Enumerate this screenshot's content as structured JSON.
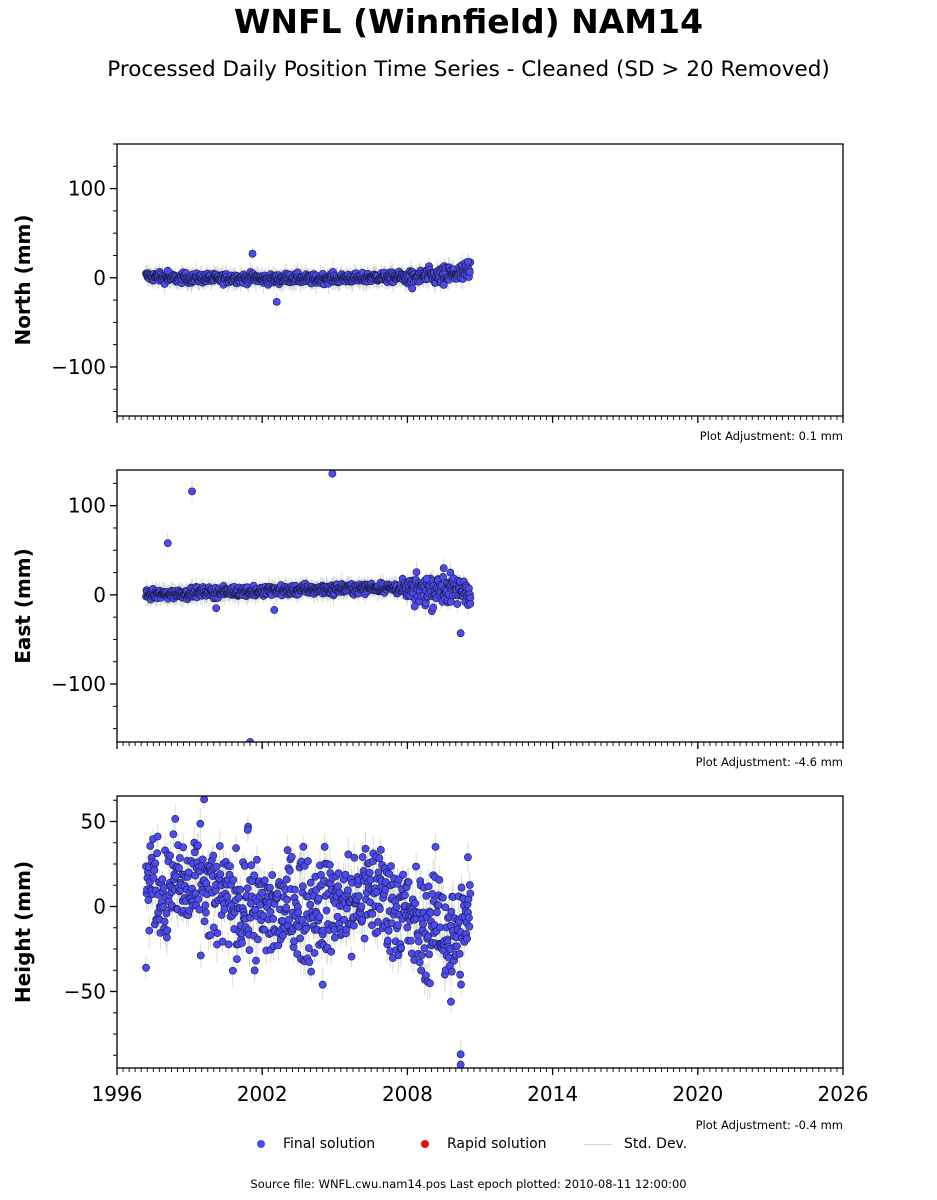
{
  "title": "WNFL (Winnfield) NAM14",
  "subtitle": "Processed Daily Position Time Series - Cleaned (SD > 20 Removed)",
  "chart_data": [
    {
      "type": "scatter",
      "ylabel": "North (mm)",
      "ylim": [
        -155,
        150
      ],
      "yticks": [
        100,
        0,
        -100
      ],
      "ytick_labels": [
        "100",
        "0",
        "−100"
      ],
      "xlim": [
        1996,
        2026
      ],
      "adjustment_label": "Plot Adjustment: 0.1 mm",
      "series": [
        {
          "name": "Final solution",
          "description_of_shape": "dense band of daily points",
          "x": [
            1997.2,
            1997.6,
            1998.0,
            1998.4,
            1998.8,
            1999.2,
            1999.6,
            2000.0,
            2000.4,
            2000.8,
            2001.2,
            2001.6,
            2002.0,
            2002.4,
            2002.8,
            2003.2,
            2003.6,
            2004.0,
            2004.4,
            2004.8,
            2005.2,
            2005.6,
            2006.0,
            2006.4,
            2006.8,
            2007.2,
            2007.6,
            2008.0,
            2008.4,
            2008.8,
            2009.2,
            2009.6,
            2010.0,
            2010.4,
            2010.6
          ],
          "y": [
            2,
            1,
            0,
            -1,
            0,
            -1,
            0,
            -1,
            -1,
            0,
            -1,
            0,
            -1,
            -2,
            -1,
            0,
            -1,
            -2,
            -1,
            0,
            -1,
            0,
            -1,
            0,
            1,
            0,
            1,
            0,
            0,
            2,
            1,
            3,
            4,
            5,
            6
          ],
          "spread": [
            3,
            3,
            3,
            3,
            3,
            3,
            3,
            3,
            3,
            3,
            3,
            3,
            3,
            3,
            3,
            3,
            3,
            3,
            3,
            3,
            3,
            3,
            3,
            3,
            3,
            3,
            3,
            4,
            4,
            5,
            5,
            6,
            6,
            7,
            8
          ],
          "outliers": [
            [
              2001.6,
              27
            ],
            [
              2002.6,
              -27
            ],
            [
              1998.1,
              8
            ],
            [
              2008.2,
              -12
            ],
            [
              2010.5,
              18
            ],
            [
              2009.5,
              -8
            ]
          ]
        }
      ]
    },
    {
      "type": "scatter",
      "ylabel": "East (mm)",
      "ylim": [
        -165,
        140
      ],
      "yticks": [
        100,
        0,
        -100
      ],
      "ytick_labels": [
        "100",
        "0",
        "−100"
      ],
      "xlim": [
        1996,
        2026
      ],
      "adjustment_label": "Plot Adjustment: -4.6 mm",
      "series": [
        {
          "name": "Final solution",
          "x": [
            1997.2,
            1997.6,
            1998.0,
            1998.4,
            1998.8,
            1999.2,
            1999.6,
            2000.0,
            2000.4,
            2000.8,
            2001.2,
            2001.6,
            2002.0,
            2002.4,
            2002.8,
            2003.2,
            2003.6,
            2004.0,
            2004.4,
            2004.8,
            2005.2,
            2005.6,
            2006.0,
            2006.4,
            2006.8,
            2007.2,
            2007.6,
            2008.0,
            2008.4,
            2008.8,
            2009.2,
            2009.6,
            2010.0,
            2010.4,
            2010.6
          ],
          "y": [
            0,
            0,
            1,
            1,
            2,
            2,
            3,
            3,
            3,
            4,
            4,
            4,
            4,
            5,
            5,
            5,
            6,
            6,
            6,
            6,
            7,
            7,
            7,
            8,
            8,
            8,
            8,
            6,
            7,
            6,
            7,
            6,
            5,
            5,
            5
          ],
          "spread": [
            3,
            3,
            3,
            3,
            3,
            3,
            3,
            3,
            3,
            3,
            3,
            3,
            3,
            3,
            3,
            3,
            3,
            3,
            3,
            3,
            3,
            3,
            3,
            3,
            3,
            3,
            4,
            5,
            8,
            10,
            10,
            10,
            9,
            8,
            8
          ],
          "outliers": [
            [
              1998.1,
              58
            ],
            [
              1999.1,
              116
            ],
            [
              2004.9,
              136
            ],
            [
              2001.5,
              -165
            ],
            [
              2002.5,
              -17
            ],
            [
              2000.1,
              -15
            ],
            [
              2010.2,
              -43
            ],
            [
              2009.5,
              30
            ],
            [
              2008.3,
              -13
            ],
            [
              2010.6,
              -10
            ],
            [
              2008.8,
              18
            ]
          ]
        }
      ]
    },
    {
      "type": "scatter",
      "ylabel": "Height (mm)",
      "ylim": [
        -95,
        65
      ],
      "yticks": [
        50,
        0,
        -50
      ],
      "ytick_labels": [
        "50",
        "0",
        "−50"
      ],
      "xlim": [
        1996,
        2026
      ],
      "xticks": [
        1996,
        2002,
        2008,
        2014,
        2020,
        2026
      ],
      "xtick_labels": [
        "1996",
        "2002",
        "2008",
        "2014",
        "2020",
        "2026"
      ],
      "adjustment_label": "Plot Adjustment: -0.4 mm",
      "series": [
        {
          "name": "Final solution",
          "x": [
            1997.2,
            1997.6,
            1998.0,
            1998.4,
            1998.8,
            1999.2,
            1999.6,
            2000.0,
            2000.4,
            2000.8,
            2001.2,
            2001.6,
            2002.0,
            2002.4,
            2002.8,
            2003.2,
            2003.6,
            2004.0,
            2004.4,
            2004.8,
            2005.2,
            2005.6,
            2006.0,
            2006.4,
            2006.8,
            2007.2,
            2007.6,
            2008.0,
            2008.4,
            2008.8,
            2009.2,
            2009.6,
            2010.0,
            2010.4,
            2010.6
          ],
          "y": [
            12,
            15,
            5,
            18,
            8,
            10,
            12,
            6,
            5,
            -2,
            3,
            0,
            -5,
            -3,
            -4,
            2,
            0,
            -4,
            5,
            0,
            3,
            0,
            5,
            8,
            10,
            2,
            0,
            -5,
            -12,
            -14,
            -6,
            -15,
            -20,
            -10,
            -2
          ],
          "spread": [
            15,
            16,
            16,
            17,
            17,
            17,
            17,
            17,
            17,
            17,
            17,
            17,
            17,
            17,
            17,
            17,
            17,
            17,
            17,
            17,
            17,
            17,
            17,
            17,
            17,
            17,
            17,
            17,
            17,
            17,
            17,
            17,
            17,
            14,
            12
          ],
          "outliers": [
            [
              1999.6,
              63
            ],
            [
              1997.2,
              -36
            ],
            [
              2009.8,
              -56
            ],
            [
              2010.2,
              -87
            ],
            [
              2010.2,
              -93
            ],
            [
              2004.5,
              -46
            ],
            [
              2010.5,
              29
            ],
            [
              2001.4,
              45
            ]
          ]
        }
      ]
    }
  ],
  "legend": {
    "final_label": "Final solution",
    "rapid_label": "Rapid solution",
    "std_label": "Std. Dev.",
    "final_color": "#4b4bf0",
    "rapid_color": "#e01010",
    "std_color": "#d3d3d3"
  },
  "source_text": "Source file: WNFL.cwu.nam14.pos  Last epoch plotted: 2010-08-11 12:00:00"
}
